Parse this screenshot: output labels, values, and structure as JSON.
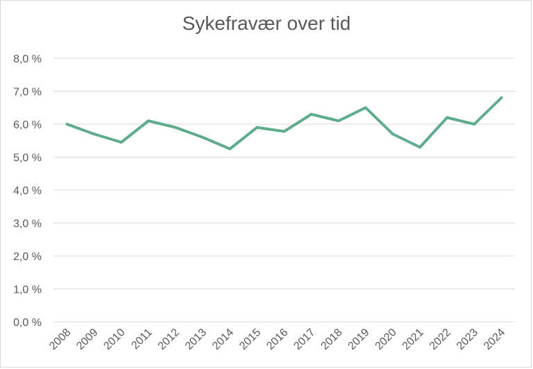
{
  "chart_data": {
    "type": "line",
    "title": "Sykefravær over tid",
    "xlabel": "",
    "ylabel": "",
    "categories": [
      "2008",
      "2009",
      "2010",
      "2011",
      "2012",
      "2013",
      "2014",
      "2015",
      "2016",
      "2017",
      "2018",
      "2019",
      "2020",
      "2021",
      "2022",
      "2023",
      "2024"
    ],
    "series": [
      {
        "values": [
          6.0,
          5.7,
          5.45,
          6.1,
          5.9,
          5.6,
          5.25,
          5.9,
          5.78,
          6.3,
          6.1,
          6.5,
          5.7,
          5.3,
          6.2,
          6.0,
          6.8
        ],
        "color": "#5fac8d"
      }
    ],
    "ylim": [
      0,
      8
    ],
    "yticks": [
      "0,0 %",
      "1,0 %",
      "2,0 %",
      "3,0 %",
      "4,0 %",
      "5,0 %",
      "6,0 %",
      "7,0 %",
      "8,0 %"
    ],
    "grid": true,
    "legend": "none"
  }
}
